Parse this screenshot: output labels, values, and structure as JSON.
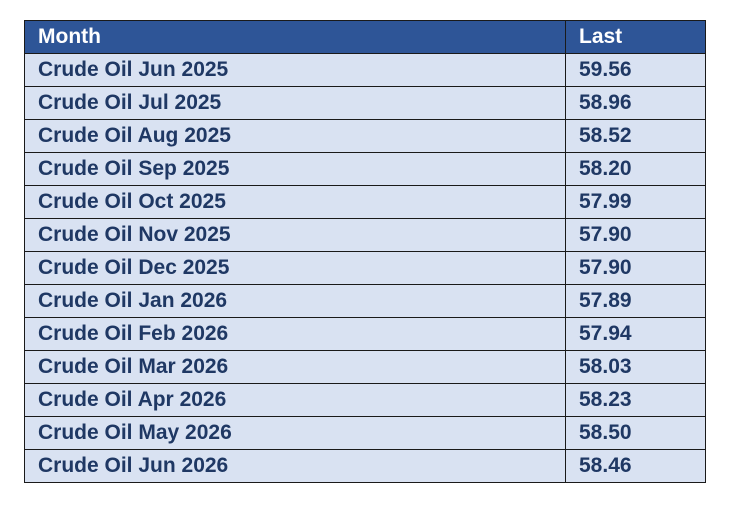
{
  "chart_data": {
    "type": "table",
    "columns": [
      "Month",
      "Last"
    ],
    "rows": [
      [
        "Crude Oil Jun 2025",
        "59.56"
      ],
      [
        "Crude Oil Jul 2025",
        "58.96"
      ],
      [
        "Crude Oil Aug 2025",
        "58.52"
      ],
      [
        "Crude Oil Sep 2025",
        "58.20"
      ],
      [
        "Crude Oil Oct 2025",
        "57.99"
      ],
      [
        "Crude Oil Nov 2025",
        "57.90"
      ],
      [
        "Crude Oil Dec 2025",
        "57.90"
      ],
      [
        "Crude Oil Jan 2026",
        "57.89"
      ],
      [
        "Crude Oil Feb 2026",
        "57.94"
      ],
      [
        "Crude Oil Mar 2026",
        "58.03"
      ],
      [
        "Crude Oil Apr 2026",
        "58.23"
      ],
      [
        "Crude Oil May 2026",
        "58.50"
      ],
      [
        "Crude Oil Jun 2026",
        "58.46"
      ]
    ]
  },
  "colors": {
    "header_background": "#2e5597",
    "header_text": "#ffffff",
    "row_background": "#d9e2f2",
    "row_text": "#1f3864",
    "border": "#1a1a1a"
  }
}
